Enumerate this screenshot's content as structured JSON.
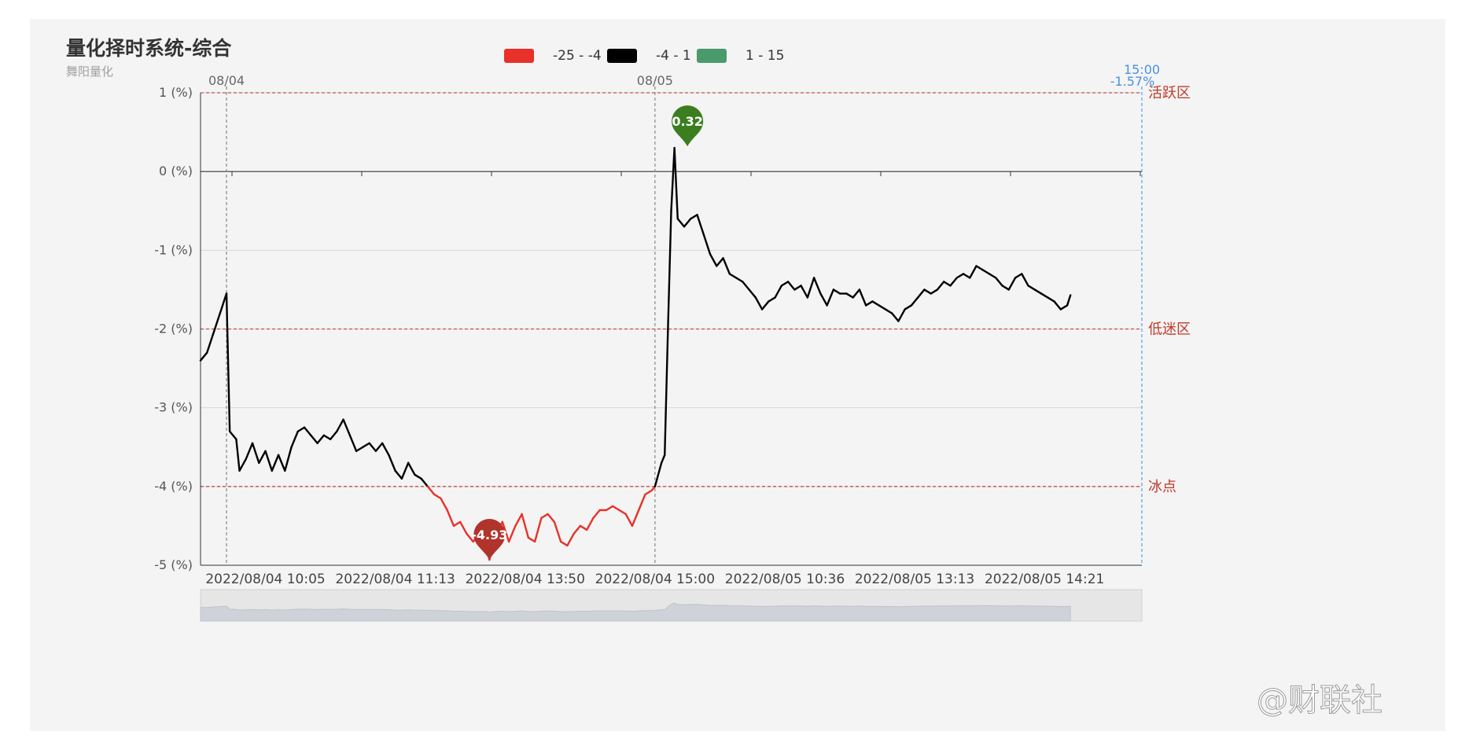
{
  "header": {
    "title": "量化择时系统-综合",
    "subtitle": "舞阳量化"
  },
  "watermark": {
    "text": "@财联社"
  },
  "chart_data": {
    "type": "line",
    "title": "量化择时系统-综合",
    "subtitle": "舞阳量化",
    "ylim": [
      -5,
      1
    ],
    "y_ticks": [
      {
        "value": 1,
        "label": "1 (%)"
      },
      {
        "value": 0,
        "label": "0 (%)"
      },
      {
        "value": -1,
        "label": "-1 (%)"
      },
      {
        "value": -2,
        "label": "-2 (%)"
      },
      {
        "value": -3,
        "label": "-3 (%)"
      },
      {
        "value": -4,
        "label": "-4 (%)"
      },
      {
        "value": -5,
        "label": "-5 (%)"
      }
    ],
    "x_ticks": [
      {
        "idx": 20,
        "label": "2022/08/04 10:05"
      },
      {
        "idx": 60,
        "label": "2022/08/04 11:13"
      },
      {
        "idx": 100,
        "label": "2022/08/04 13:50"
      },
      {
        "idx": 140,
        "label": "2022/08/04 15:00"
      },
      {
        "idx": 180,
        "label": "2022/08/05 10:36"
      },
      {
        "idx": 220,
        "label": "2022/08/05 13:13"
      },
      {
        "idx": 260,
        "label": "2022/08/05 14:21"
      }
    ],
    "x_count": 290,
    "date_markers": [
      {
        "idx": 8,
        "label": "08/04"
      },
      {
        "idx": 140,
        "label": "08/05"
      }
    ],
    "end_marker": {
      "idx": 290,
      "time": "15:00",
      "value": "-1.57%"
    },
    "zones": [
      {
        "value": 1,
        "label": "活跃区"
      },
      {
        "value": -2,
        "label": "低迷区"
      },
      {
        "value": -4,
        "label": "冰点"
      }
    ],
    "visual_map": [
      {
        "label": "-25 - -4",
        "min": -25,
        "max": -4,
        "color": "#e8312a"
      },
      {
        "label": "-4 - 1",
        "min": -4,
        "max": 1,
        "color": "#000000"
      },
      {
        "label": "1 - 15",
        "min": 1,
        "max": 15,
        "color": "#4a9a6c"
      }
    ],
    "mark_points": [
      {
        "label": "0.32",
        "idx": 150,
        "value": 0.32,
        "color": "#3a7e1f"
      },
      {
        "label": "-4.93",
        "idx": 89,
        "value": -4.93,
        "color": "#b0342c"
      }
    ],
    "series": [
      {
        "values": [
          [
            0,
            -2.4
          ],
          [
            2,
            -2.3
          ],
          [
            4,
            -2.05
          ],
          [
            6,
            -1.8
          ],
          [
            8,
            -1.55
          ],
          [
            9,
            -3.3
          ],
          [
            11,
            -3.4
          ],
          [
            12,
            -3.8
          ],
          [
            14,
            -3.65
          ],
          [
            16,
            -3.45
          ],
          [
            18,
            -3.7
          ],
          [
            20,
            -3.55
          ],
          [
            22,
            -3.8
          ],
          [
            24,
            -3.6
          ],
          [
            26,
            -3.8
          ],
          [
            28,
            -3.5
          ],
          [
            30,
            -3.3
          ],
          [
            32,
            -3.25
          ],
          [
            34,
            -3.35
          ],
          [
            36,
            -3.45
          ],
          [
            38,
            -3.35
          ],
          [
            40,
            -3.4
          ],
          [
            42,
            -3.3
          ],
          [
            44,
            -3.15
          ],
          [
            46,
            -3.35
          ],
          [
            48,
            -3.55
          ],
          [
            50,
            -3.5
          ],
          [
            52,
            -3.45
          ],
          [
            54,
            -3.55
          ],
          [
            56,
            -3.45
          ],
          [
            58,
            -3.6
          ],
          [
            60,
            -3.8
          ],
          [
            62,
            -3.9
          ],
          [
            64,
            -3.7
          ],
          [
            66,
            -3.85
          ],
          [
            68,
            -3.9
          ],
          [
            70,
            -4.0
          ],
          [
            72,
            -4.1
          ],
          [
            74,
            -4.15
          ],
          [
            76,
            -4.3
          ],
          [
            78,
            -4.5
          ],
          [
            80,
            -4.45
          ],
          [
            82,
            -4.6
          ],
          [
            84,
            -4.7
          ],
          [
            86,
            -4.6
          ],
          [
            88,
            -4.75
          ],
          [
            89,
            -4.93
          ],
          [
            91,
            -4.6
          ],
          [
            93,
            -4.45
          ],
          [
            95,
            -4.7
          ],
          [
            97,
            -4.5
          ],
          [
            99,
            -4.35
          ],
          [
            101,
            -4.65
          ],
          [
            103,
            -4.7
          ],
          [
            105,
            -4.4
          ],
          [
            107,
            -4.35
          ],
          [
            109,
            -4.45
          ],
          [
            111,
            -4.7
          ],
          [
            113,
            -4.75
          ],
          [
            115,
            -4.6
          ],
          [
            117,
            -4.5
          ],
          [
            119,
            -4.55
          ],
          [
            121,
            -4.4
          ],
          [
            123,
            -4.3
          ],
          [
            125,
            -4.3
          ],
          [
            127,
            -4.25
          ],
          [
            129,
            -4.3
          ],
          [
            131,
            -4.35
          ],
          [
            133,
            -4.5
          ],
          [
            135,
            -4.3
          ],
          [
            137,
            -4.1
          ],
          [
            139,
            -4.05
          ],
          [
            140,
            -4.0
          ],
          [
            142,
            -3.7
          ],
          [
            143,
            -3.6
          ],
          [
            144,
            -2.0
          ],
          [
            145,
            -0.5
          ],
          [
            146,
            0.3
          ],
          [
            147,
            -0.6
          ],
          [
            149,
            -0.7
          ],
          [
            151,
            -0.6
          ],
          [
            153,
            -0.55
          ],
          [
            155,
            -0.8
          ],
          [
            157,
            -1.05
          ],
          [
            159,
            -1.2
          ],
          [
            161,
            -1.1
          ],
          [
            163,
            -1.3
          ],
          [
            165,
            -1.35
          ],
          [
            167,
            -1.4
          ],
          [
            169,
            -1.5
          ],
          [
            171,
            -1.6
          ],
          [
            173,
            -1.75
          ],
          [
            175,
            -1.65
          ],
          [
            177,
            -1.6
          ],
          [
            179,
            -1.45
          ],
          [
            181,
            -1.4
          ],
          [
            183,
            -1.5
          ],
          [
            185,
            -1.45
          ],
          [
            187,
            -1.6
          ],
          [
            189,
            -1.35
          ],
          [
            191,
            -1.55
          ],
          [
            193,
            -1.7
          ],
          [
            195,
            -1.5
          ],
          [
            197,
            -1.55
          ],
          [
            199,
            -1.55
          ],
          [
            201,
            -1.6
          ],
          [
            203,
            -1.5
          ],
          [
            205,
            -1.7
          ],
          [
            207,
            -1.65
          ],
          [
            209,
            -1.7
          ],
          [
            211,
            -1.75
          ],
          [
            213,
            -1.8
          ],
          [
            215,
            -1.9
          ],
          [
            217,
            -1.75
          ],
          [
            219,
            -1.7
          ],
          [
            221,
            -1.6
          ],
          [
            223,
            -1.5
          ],
          [
            225,
            -1.55
          ],
          [
            227,
            -1.5
          ],
          [
            229,
            -1.4
          ],
          [
            231,
            -1.45
          ],
          [
            233,
            -1.35
          ],
          [
            235,
            -1.3
          ],
          [
            237,
            -1.35
          ],
          [
            239,
            -1.2
          ],
          [
            241,
            -1.25
          ],
          [
            243,
            -1.3
          ],
          [
            245,
            -1.35
          ],
          [
            247,
            -1.45
          ],
          [
            249,
            -1.5
          ],
          [
            251,
            -1.35
          ],
          [
            253,
            -1.3
          ],
          [
            255,
            -1.45
          ],
          [
            257,
            -1.5
          ],
          [
            259,
            -1.55
          ],
          [
            261,
            -1.6
          ],
          [
            263,
            -1.65
          ],
          [
            265,
            -1.75
          ],
          [
            267,
            -1.7
          ],
          [
            268,
            -1.57
          ]
        ]
      }
    ]
  }
}
